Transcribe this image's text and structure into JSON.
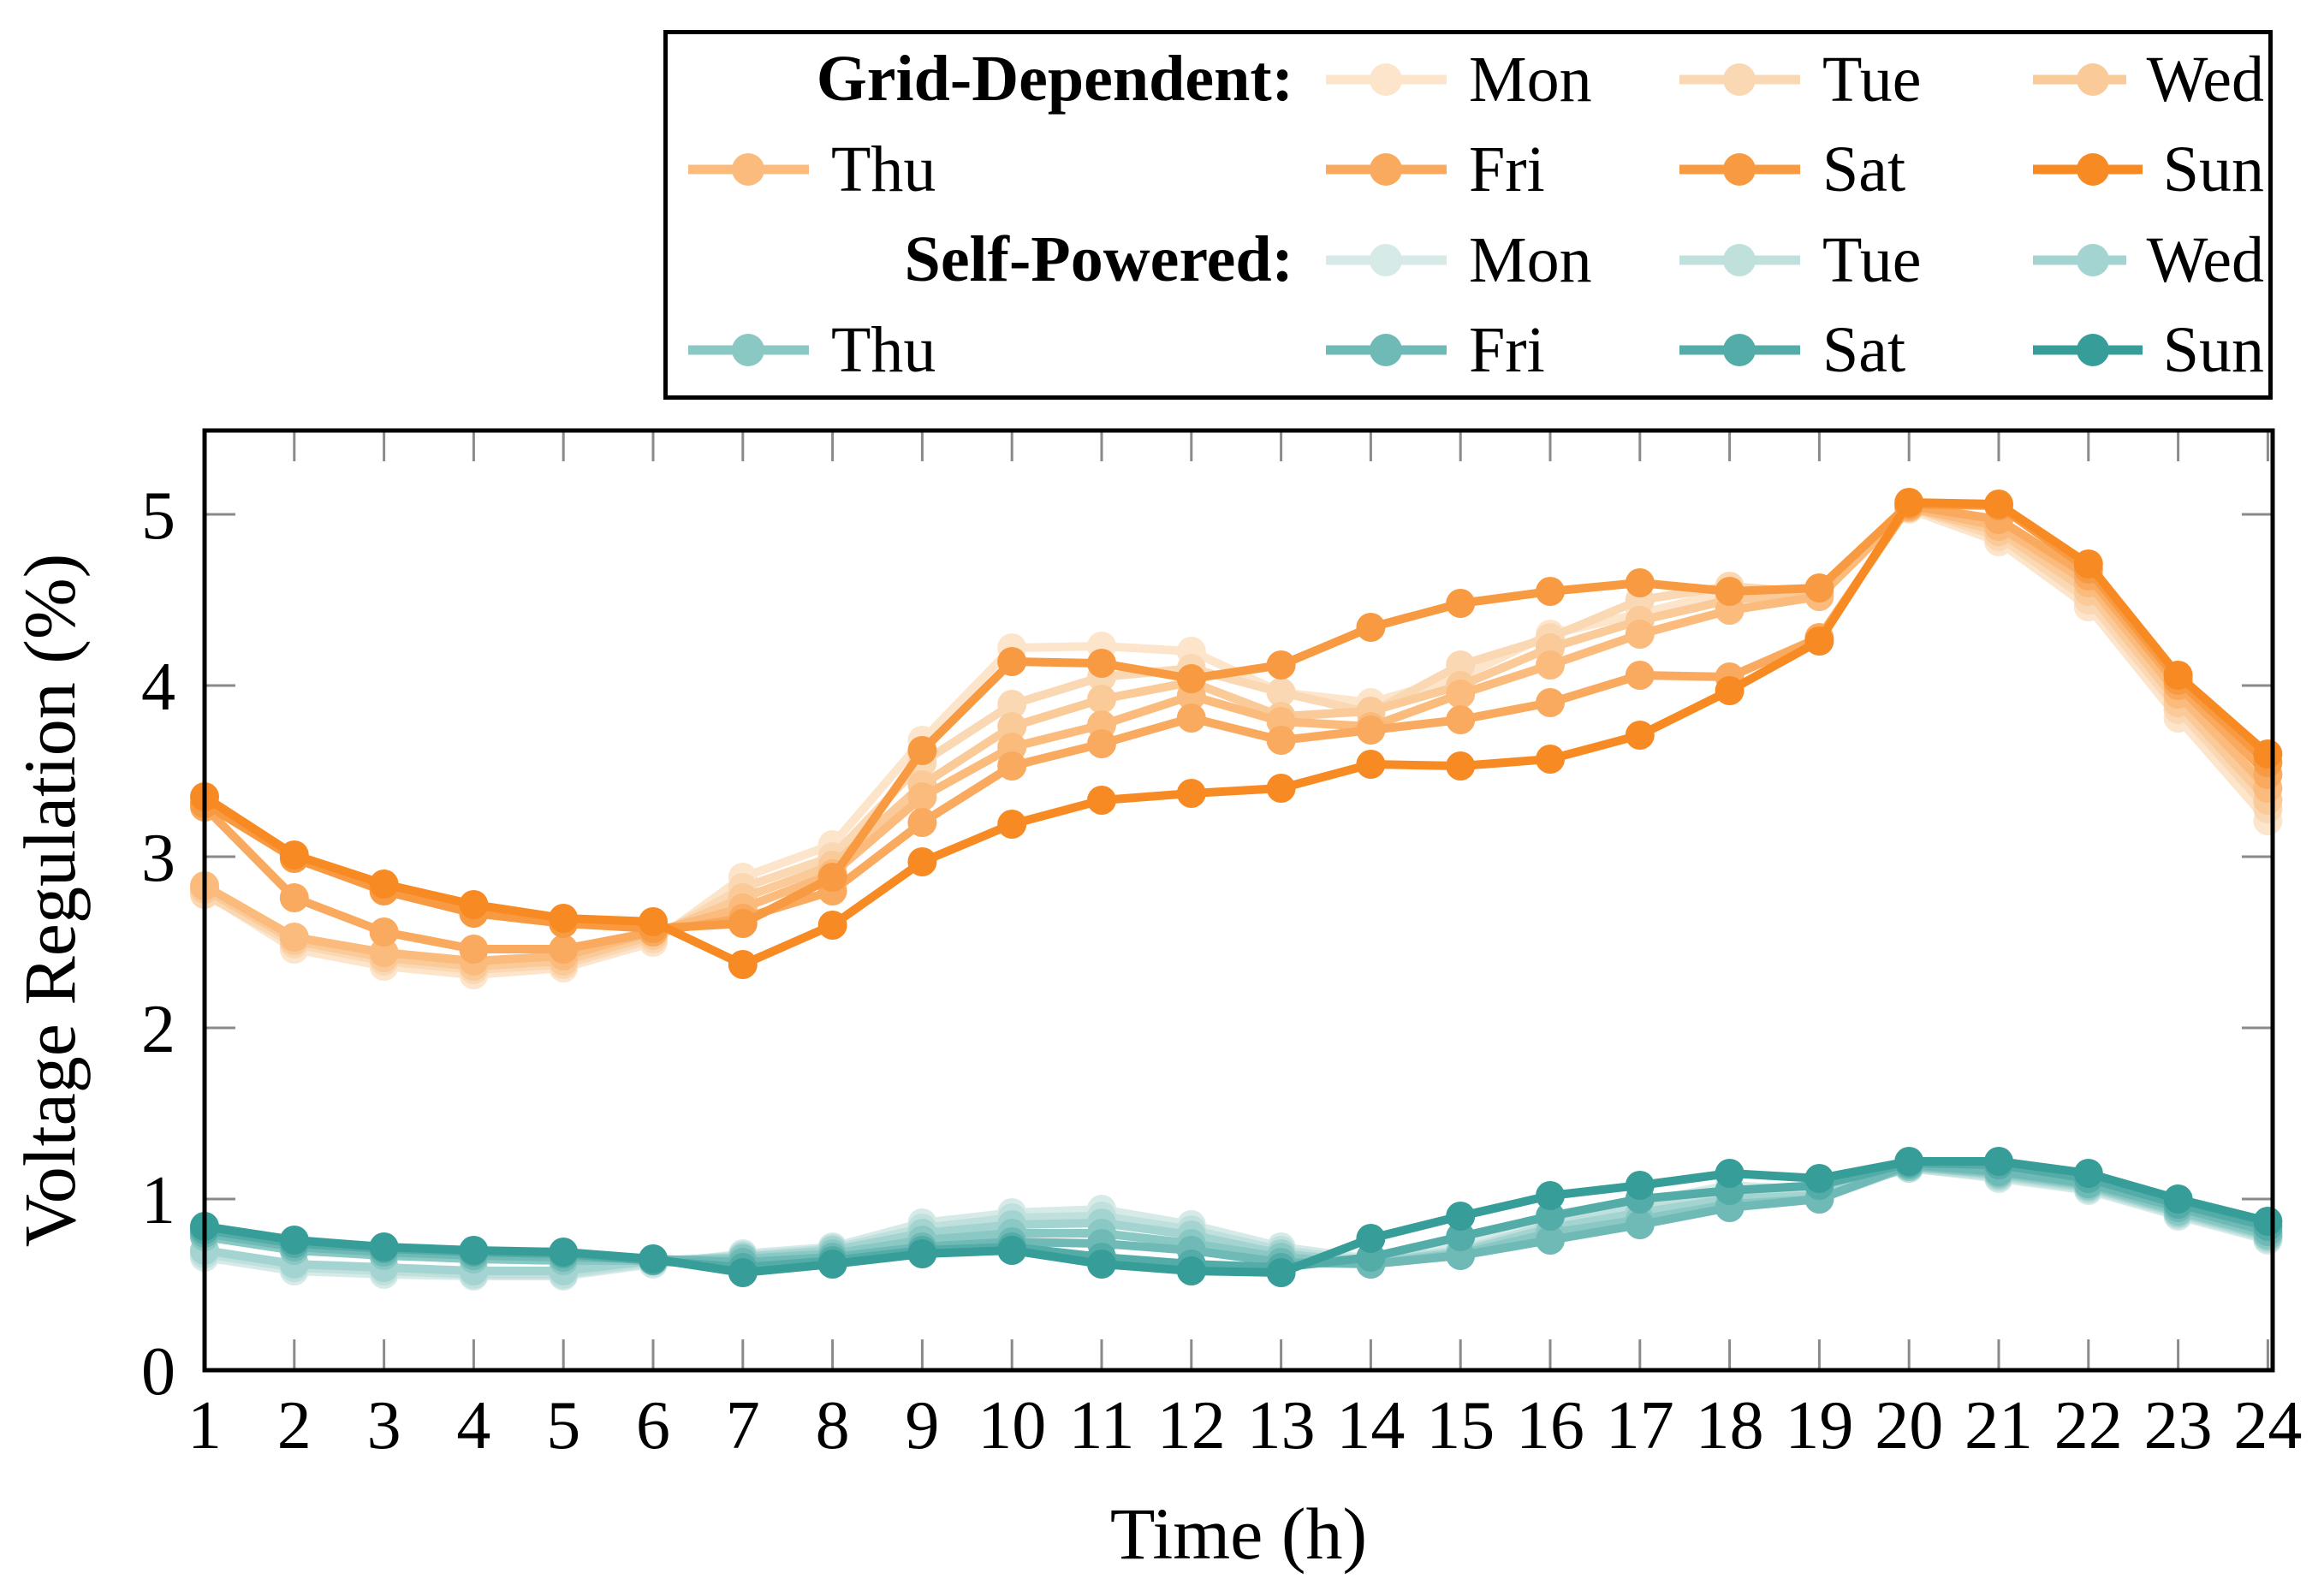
{
  "page": {
    "background": "#ffffff"
  },
  "chart_data": {
    "type": "line",
    "title": "",
    "xlabel": "Time (h)",
    "ylabel": "Voltage Regulation (%)",
    "x": [
      1,
      2,
      3,
      4,
      5,
      6,
      7,
      8,
      9,
      10,
      11,
      12,
      13,
      14,
      15,
      16,
      17,
      18,
      19,
      20,
      21,
      22,
      23,
      24
    ],
    "xticks": [
      1,
      2,
      3,
      4,
      5,
      6,
      7,
      8,
      9,
      10,
      11,
      12,
      13,
      14,
      15,
      16,
      17,
      18,
      19,
      20,
      21,
      22,
      23,
      24
    ],
    "yticks": [
      0,
      1,
      2,
      3,
      4,
      5
    ],
    "xlim": [
      1,
      24.07
    ],
    "ylim": [
      0,
      5.49
    ],
    "grid": false,
    "legend_position": "top-center",
    "styles": {
      "axis_color": "#000000",
      "tick_color": "#8a8a8a",
      "line_width": 10,
      "marker_radius": 17
    },
    "groups": [
      {
        "label": "Grid-Dependent:",
        "series": [
          {
            "name": "Mon",
            "color": "#FCE5CB",
            "values": [
              2.79,
              2.46,
              2.36,
              2.31,
              2.35,
              2.5,
              2.88,
              3.07,
              3.68,
              4.22,
              4.23,
              4.2,
              3.96,
              3.9,
              4.05,
              4.3,
              4.42,
              4.55,
              4.52,
              5.03,
              4.84,
              4.46,
              3.81,
              3.21
            ]
          },
          {
            "name": "Tue",
            "color": "#FBD8B4",
            "values": [
              2.78,
              2.49,
              2.39,
              2.34,
              2.37,
              2.52,
              2.82,
              3.0,
              3.55,
              3.89,
              4.05,
              4.1,
              3.96,
              3.84,
              4.12,
              4.28,
              4.5,
              4.58,
              4.54,
              5.04,
              4.87,
              4.5,
              3.86,
              3.28
            ]
          },
          {
            "name": "Wed",
            "color": "#FACA99",
            "values": [
              2.81,
              2.51,
              2.41,
              2.36,
              2.39,
              2.54,
              2.76,
              2.95,
              3.42,
              3.76,
              3.92,
              4.02,
              3.82,
              3.85,
              4.0,
              4.22,
              4.38,
              4.5,
              4.54,
              5.04,
              4.9,
              4.55,
              3.9,
              3.33
            ]
          },
          {
            "name": "Thu",
            "color": "#FABB7D",
            "values": [
              2.83,
              2.53,
              2.44,
              2.39,
              2.42,
              2.56,
              2.7,
              2.9,
              3.35,
              3.64,
              3.77,
              3.94,
              3.79,
              3.76,
              3.95,
              4.12,
              4.3,
              4.44,
              4.52,
              5.04,
              4.93,
              4.6,
              3.95,
              3.4
            ]
          },
          {
            "name": "Fri",
            "color": "#F9AA5F",
            "values": [
              3.29,
              2.76,
              2.56,
              2.46,
              2.46,
              2.56,
              2.64,
              2.8,
              3.2,
              3.53,
              3.66,
              3.81,
              3.68,
              3.74,
              3.8,
              3.9,
              4.06,
              4.05,
              4.28,
              5.05,
              4.97,
              4.64,
              4.0,
              3.48
            ]
          },
          {
            "name": "Sat",
            "color": "#F89A41",
            "values": [
              3.31,
              2.99,
              2.8,
              2.67,
              2.61,
              2.58,
              2.61,
              2.88,
              3.62,
              4.14,
              4.13,
              4.04,
              4.12,
              4.34,
              4.48,
              4.55,
              4.6,
              4.55,
              4.57,
              5.06,
              5.05,
              4.68,
              4.03,
              3.55
            ]
          },
          {
            "name": "Sun",
            "color": "#F78A22",
            "values": [
              3.35,
              3.01,
              2.84,
              2.72,
              2.64,
              2.62,
              2.37,
              2.6,
              2.97,
              3.19,
              3.33,
              3.37,
              3.4,
              3.54,
              3.53,
              3.57,
              3.71,
              3.97,
              4.26,
              5.07,
              5.06,
              4.71,
              4.06,
              3.6
            ]
          }
        ]
      },
      {
        "label": "Self-Powered:",
        "series": [
          {
            "name": "Mon",
            "color": "#D6EAE8",
            "values": [
              0.66,
              0.58,
              0.56,
              0.55,
              0.55,
              0.62,
              0.68,
              0.72,
              0.86,
              0.92,
              0.94,
              0.85,
              0.72,
              0.65,
              0.72,
              0.88,
              0.98,
              1.08,
              1.05,
              1.18,
              1.12,
              1.05,
              0.9,
              0.76
            ]
          },
          {
            "name": "Tue",
            "color": "#BFE0DD",
            "values": [
              0.68,
              0.6,
              0.58,
              0.56,
              0.56,
              0.63,
              0.67,
              0.71,
              0.83,
              0.89,
              0.9,
              0.82,
              0.7,
              0.64,
              0.7,
              0.85,
              0.95,
              1.05,
              1.03,
              1.18,
              1.13,
              1.06,
              0.91,
              0.77
            ]
          },
          {
            "name": "Wed",
            "color": "#A4D4D1",
            "values": [
              0.7,
              0.62,
              0.6,
              0.58,
              0.58,
              0.64,
              0.66,
              0.7,
              0.8,
              0.85,
              0.86,
              0.79,
              0.68,
              0.63,
              0.69,
              0.83,
              0.92,
              1.0,
              1.02,
              1.19,
              1.14,
              1.07,
              0.92,
              0.78
            ]
          },
          {
            "name": "Thu",
            "color": "#8AC8C4",
            "values": [
              0.78,
              0.7,
              0.67,
              0.65,
              0.64,
              0.64,
              0.65,
              0.68,
              0.76,
              0.8,
              0.8,
              0.74,
              0.66,
              0.62,
              0.68,
              0.8,
              0.88,
              0.97,
              1.0,
              1.19,
              1.15,
              1.08,
              0.93,
              0.79
            ]
          },
          {
            "name": "Fri",
            "color": "#6FBAB6",
            "values": [
              0.8,
              0.72,
              0.69,
              0.67,
              0.66,
              0.65,
              0.63,
              0.66,
              0.72,
              0.75,
              0.74,
              0.7,
              0.63,
              0.62,
              0.67,
              0.76,
              0.85,
              0.95,
              1.0,
              1.2,
              1.16,
              1.09,
              0.95,
              0.81
            ]
          },
          {
            "name": "Sat",
            "color": "#53ACA7",
            "values": [
              0.82,
              0.74,
              0.71,
              0.69,
              0.68,
              0.64,
              0.6,
              0.64,
              0.7,
              0.72,
              0.66,
              0.62,
              0.6,
              0.66,
              0.78,
              0.9,
              1.0,
              1.05,
              1.08,
              1.21,
              1.2,
              1.12,
              0.97,
              0.84
            ]
          },
          {
            "name": "Sun",
            "color": "#379D98",
            "values": [
              0.84,
              0.76,
              0.72,
              0.7,
              0.69,
              0.65,
              0.57,
              0.62,
              0.68,
              0.7,
              0.62,
              0.58,
              0.57,
              0.77,
              0.9,
              1.02,
              1.08,
              1.15,
              1.12,
              1.22,
              1.22,
              1.15,
              1.0,
              0.87
            ]
          }
        ]
      }
    ]
  }
}
